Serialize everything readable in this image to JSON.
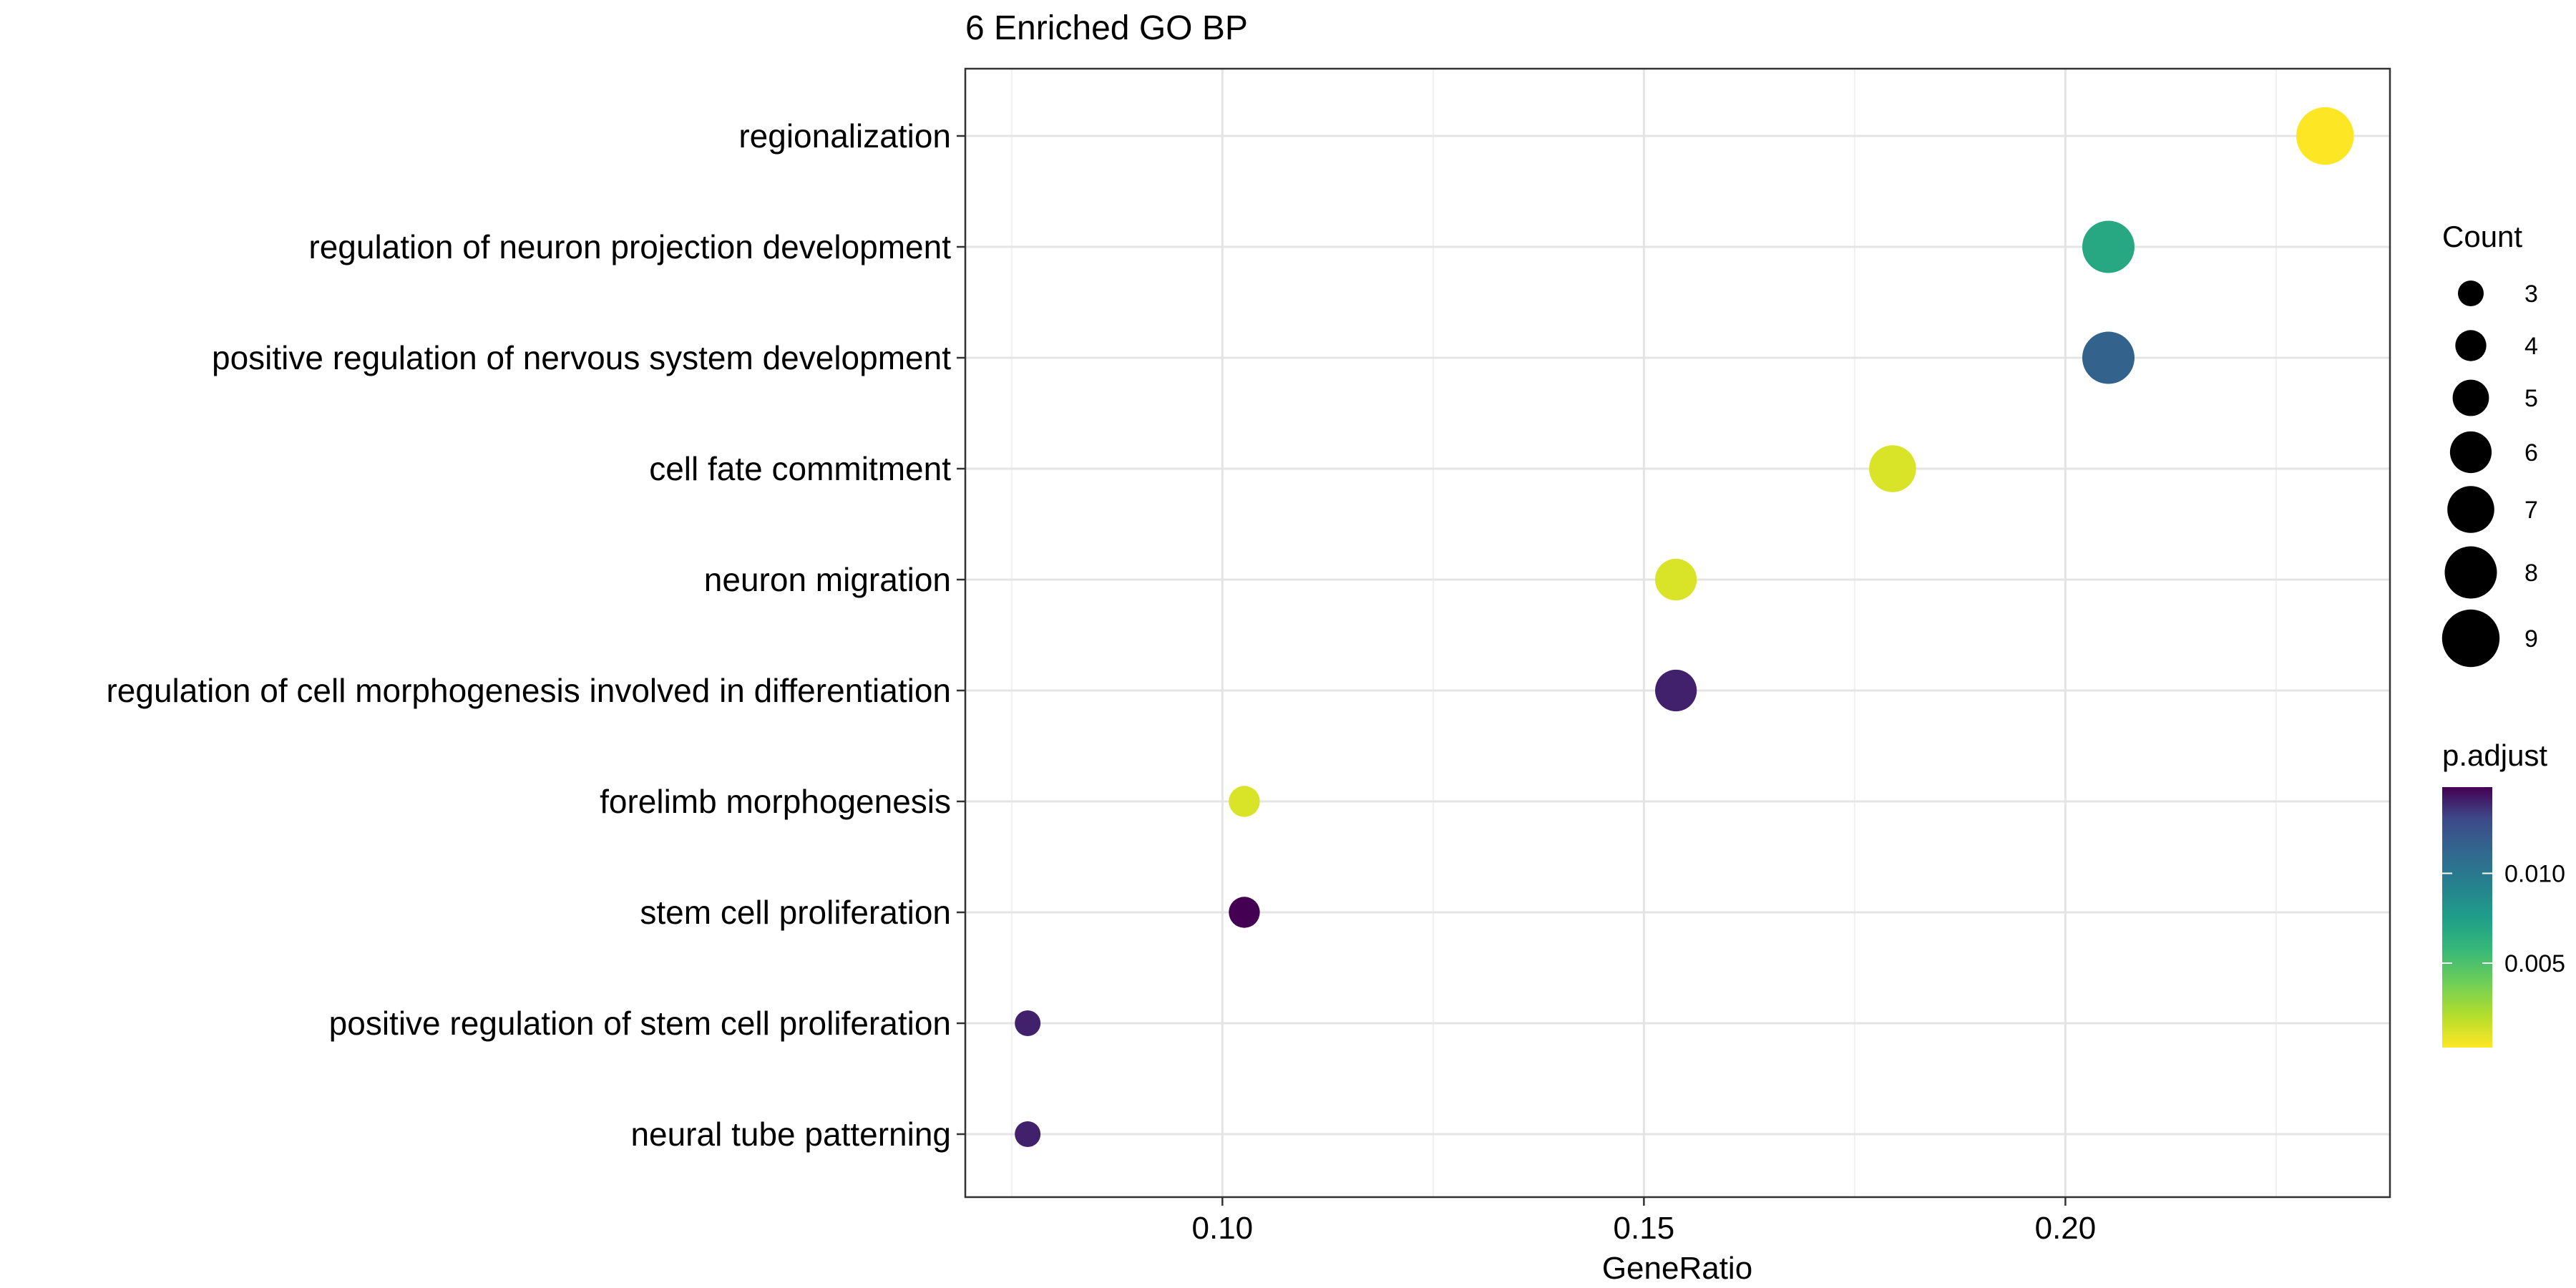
{
  "chart_data": {
    "type": "scatter",
    "title": "6 Enriched GO BP",
    "xlabel": "GeneRatio",
    "ylabel": "",
    "xlim": [
      0.0695,
      0.2385
    ],
    "x_ticks": [
      "0.10",
      "0.15",
      "0.20"
    ],
    "x_tick_values": [
      0.1,
      0.15,
      0.2
    ],
    "grid": true,
    "categories": [
      "regionalization",
      "regulation of neuron projection development",
      "positive regulation of nervous system development",
      "cell fate commitment",
      "neuron migration",
      "regulation of cell morphogenesis involved in differentiation",
      "forelimb morphogenesis",
      "stem cell proliferation",
      "positive regulation of stem cell proliferation",
      "neural tube patterning"
    ],
    "points": [
      {
        "term": "regionalization",
        "x": 0.2308,
        "count": 9,
        "p_adjust": 0.0003
      },
      {
        "term": "regulation of neuron projection development",
        "x": 0.2051,
        "count": 8,
        "p_adjust": 0.0068
      },
      {
        "term": "positive regulation of nervous system development",
        "x": 0.2051,
        "count": 8,
        "p_adjust": 0.0115
      },
      {
        "term": "cell fate commitment",
        "x": 0.1795,
        "count": 7,
        "p_adjust": 0.0012
      },
      {
        "term": "neuron migration",
        "x": 0.1538,
        "count": 6,
        "p_adjust": 0.0012
      },
      {
        "term": "regulation of cell morphogenesis involved in differentiation",
        "x": 0.1538,
        "count": 6,
        "p_adjust": 0.014
      },
      {
        "term": "forelimb morphogenesis",
        "x": 0.1026,
        "count": 4,
        "p_adjust": 0.0012
      },
      {
        "term": "stem cell proliferation",
        "x": 0.1026,
        "count": 4,
        "p_adjust": 0.0148
      },
      {
        "term": "positive regulation of stem cell proliferation",
        "x": 0.0769,
        "count": 3,
        "p_adjust": 0.014
      },
      {
        "term": "neural tube patterning",
        "x": 0.0769,
        "count": 3,
        "p_adjust": 0.014
      }
    ],
    "size_legend": {
      "title": "Count",
      "values": [
        3,
        4,
        5,
        6,
        7,
        8,
        9
      ],
      "labels": [
        "3",
        "4",
        "5",
        "6",
        "7",
        "8",
        "9"
      ]
    },
    "color_legend": {
      "title": "p.adjust",
      "range": [
        0.0003,
        0.0148
      ],
      "tick_values": [
        0.005,
        0.01
      ],
      "tick_labels": [
        "0.005",
        "0.010"
      ],
      "low_color": "#fde725",
      "high_color": "#440154"
    },
    "legend_placement": "right"
  }
}
